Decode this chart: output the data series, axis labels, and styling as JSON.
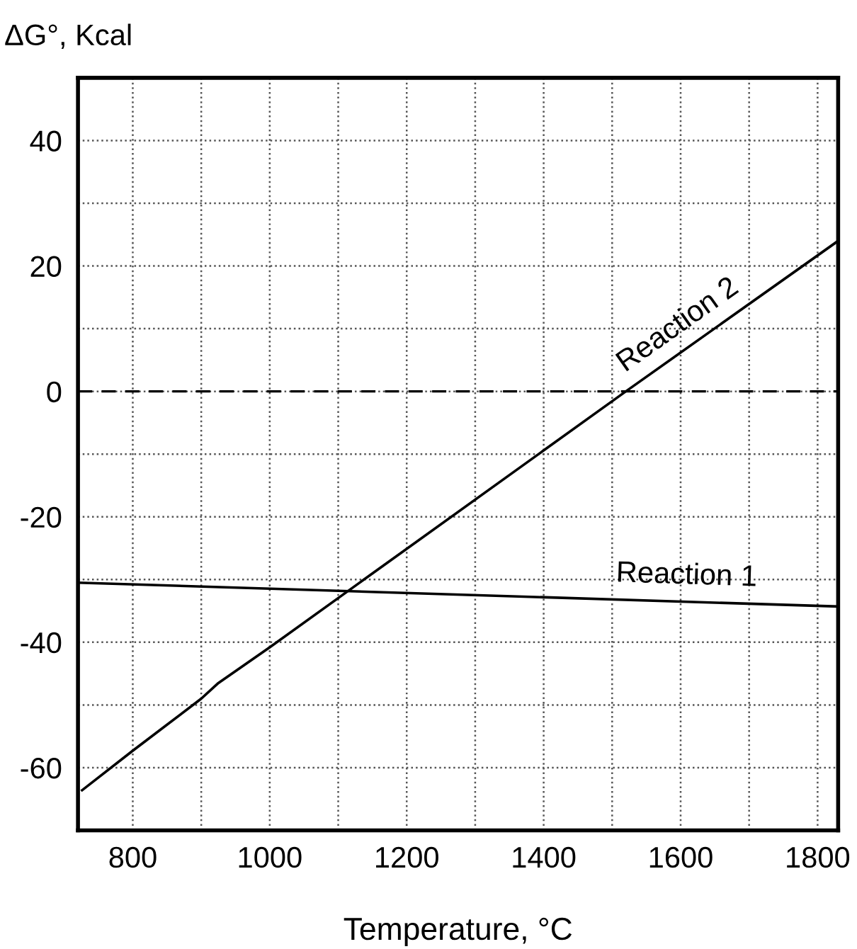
{
  "chart_data": {
    "type": "line",
    "xlabel": "Temperature, °C",
    "ylabel": "ΔG°, Kcal",
    "xlim": [
      720,
      1830
    ],
    "ylim": [
      -70,
      50
    ],
    "xticks": [
      800,
      {
        "value": 900,
        "label": null
      },
      1000,
      {
        "value": 1100,
        "label": null
      },
      1200,
      {
        "value": 1300,
        "label": null
      },
      1400,
      {
        "value": 1500,
        "label": null
      },
      1600,
      {
        "value": 1700,
        "label": null
      },
      1800
    ],
    "yticks": [
      {
        "value": -70,
        "label": null
      },
      -60,
      {
        "value": -50,
        "label": null
      },
      -40,
      {
        "value": -30,
        "label": null
      },
      -20,
      {
        "value": -10,
        "label": null
      },
      0,
      {
        "value": 10,
        "label": null
      },
      20,
      {
        "value": 30,
        "label": null
      },
      40,
      {
        "value": 50,
        "label": null
      }
    ],
    "grid": true,
    "legend": false,
    "marker": "none",
    "line_style": "solid",
    "ref_lines": [
      {
        "axis": "y",
        "value": 0,
        "color": "#000000",
        "line_style": "dashed"
      }
    ],
    "series": [
      {
        "name": "Reaction 1",
        "color": "#000000",
        "x": [
          720,
          1830
        ],
        "values": [
          -30.5,
          -34.3
        ]
      },
      {
        "name": "Reaction 2",
        "color": "#000000",
        "x": [
          726,
          800,
          900,
          925,
          1000,
          1520,
          1830
        ],
        "values": [
          -63.6,
          -57.3,
          -49,
          -46.5,
          -40.8,
          0,
          24
        ]
      }
    ]
  }
}
